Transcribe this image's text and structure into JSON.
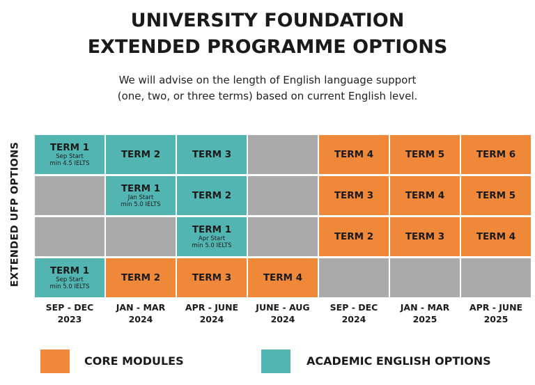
{
  "title": {
    "line1": "UNIVERSITY FOUNDATION",
    "line2": "EXTENDED PROGRAMME OPTIONS"
  },
  "subtitle": {
    "line1": "We will advise on the length of English language support",
    "line2": "(one, two, or three terms) based on current English level."
  },
  "side_label": "EXTENDED UFP OPTIONS",
  "colors": {
    "core": "#f0883a",
    "academic_english": "#53b5b2",
    "empty": "#aaaaaa"
  },
  "columns": [
    {
      "line1": "SEP - DEC",
      "line2": "2023"
    },
    {
      "line1": "JAN - MAR",
      "line2": "2024"
    },
    {
      "line1": "APR - JUNE",
      "line2": "2024"
    },
    {
      "line1": "JUNE - AUG",
      "line2": "2024"
    },
    {
      "line1": "SEP - DEC",
      "line2": "2024"
    },
    {
      "line1": "JAN - MAR",
      "line2": "2025"
    },
    {
      "line1": "APR - JUNE",
      "line2": "2025"
    }
  ],
  "rows": [
    [
      {
        "type": "ae",
        "term": "TERM 1",
        "note1": "Sep Start",
        "note2": "min 4.5 IELTS"
      },
      {
        "type": "ae",
        "term": "TERM 2"
      },
      {
        "type": "ae",
        "term": "TERM 3"
      },
      {
        "type": "empty"
      },
      {
        "type": "core",
        "term": "TERM 4"
      },
      {
        "type": "core",
        "term": "TERM 5"
      },
      {
        "type": "core",
        "term": "TERM 6"
      }
    ],
    [
      {
        "type": "empty"
      },
      {
        "type": "ae",
        "term": "TERM 1",
        "note1": "Jan Start",
        "note2": "min 5.0 IELTS"
      },
      {
        "type": "ae",
        "term": "TERM 2"
      },
      {
        "type": "empty"
      },
      {
        "type": "core",
        "term": "TERM 3"
      },
      {
        "type": "core",
        "term": "TERM 4"
      },
      {
        "type": "core",
        "term": "TERM 5"
      }
    ],
    [
      {
        "type": "empty"
      },
      {
        "type": "empty"
      },
      {
        "type": "ae",
        "term": "TERM 1",
        "note1": "Apr Start",
        "note2": "min 5.0 IELTS"
      },
      {
        "type": "empty"
      },
      {
        "type": "core",
        "term": "TERM 2"
      },
      {
        "type": "core",
        "term": "TERM 3"
      },
      {
        "type": "core",
        "term": "TERM 4"
      }
    ],
    [
      {
        "type": "ae",
        "term": "TERM 1",
        "note1": "Sep Start",
        "note2": "min 5.0 IELTS"
      },
      {
        "type": "core",
        "term": "TERM 2"
      },
      {
        "type": "core",
        "term": "TERM 3"
      },
      {
        "type": "core",
        "term": "TERM 4"
      },
      {
        "type": "empty"
      },
      {
        "type": "empty"
      },
      {
        "type": "empty"
      }
    ]
  ],
  "legend": {
    "core_label": "CORE MODULES",
    "ae_label": "ACADEMIC ENGLISH OPTIONS"
  }
}
